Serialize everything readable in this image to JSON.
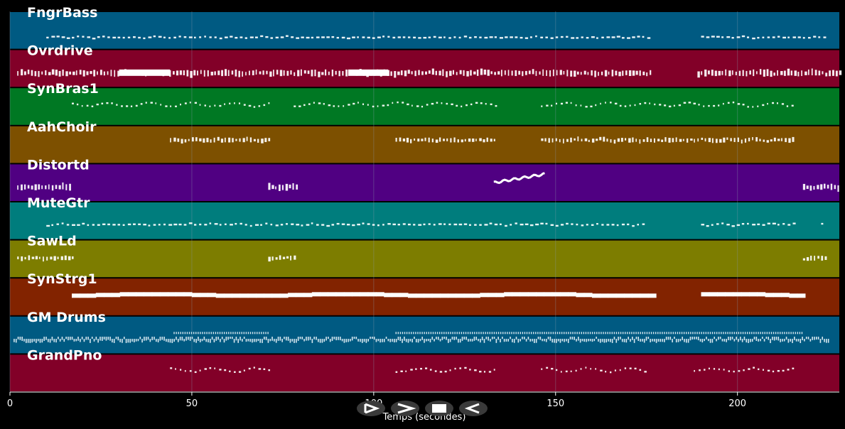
{
  "xaxis": {
    "label": "Temps (secondes)",
    "range": [
      0,
      228
    ],
    "ticks": [
      0,
      50,
      100,
      150,
      200
    ],
    "tick_labels": [
      "0",
      "50",
      "100",
      "150",
      "200"
    ]
  },
  "tracks": [
    {
      "name": "FngrBass",
      "color": "#005a82",
      "style": "dashes",
      "band": 0.68,
      "segments": [
        [
          10,
          176
        ],
        [
          190,
          224
        ]
      ]
    },
    {
      "name": "Ovrdrive",
      "color": "#820028",
      "style": "dense",
      "band": 0.62,
      "segments": [
        [
          2,
          176
        ],
        [
          189,
          228
        ]
      ],
      "blocks": [
        [
          30,
          44
        ],
        [
          93,
          104
        ]
      ]
    },
    {
      "name": "SynBras1",
      "color": "#007823",
      "style": "wave",
      "band": 0.45,
      "segments": [
        [
          17,
          72
        ],
        [
          78,
          134
        ],
        [
          146,
          216
        ]
      ]
    },
    {
      "name": "AahChoir",
      "color": "#7d5000",
      "style": "dense-low",
      "band": 0.38,
      "segments": [
        [
          44,
          72
        ],
        [
          106,
          134
        ],
        [
          146,
          216
        ]
      ]
    },
    {
      "name": "Distortd",
      "color": "#500082",
      "style": "dense",
      "band": 0.62,
      "segments": [
        [
          2,
          17
        ],
        [
          71,
          79
        ],
        [
          218,
          228
        ]
      ],
      "glide": [
        133,
        147
      ]
    },
    {
      "name": "MuteGtr",
      "color": "#007d7d",
      "style": "dashes",
      "band": 0.6,
      "segments": [
        [
          10,
          175
        ],
        [
          190,
          216
        ],
        [
          223,
          224
        ]
      ]
    },
    {
      "name": "SawLd",
      "color": "#7d7d00",
      "style": "dense-low",
      "band": 0.48,
      "segments": [
        [
          2,
          18
        ],
        [
          71,
          79
        ],
        [
          218,
          225
        ]
      ]
    },
    {
      "name": "SynStrg1",
      "color": "#822300",
      "style": "solid",
      "band": 0.45,
      "segments": [
        [
          17,
          176
        ],
        [
          190,
          217
        ]
      ]
    },
    {
      "name": "GM Drums",
      "color": "#005a82",
      "style": "drums",
      "band": 0.62,
      "segments": [
        [
          1,
          225
        ]
      ],
      "upper": [
        [
          45,
          71
        ],
        [
          106,
          218
        ]
      ]
    },
    {
      "name": "GrandPno",
      "color": "#820028",
      "style": "wave",
      "band": 0.42,
      "segments": [
        [
          44,
          72
        ],
        [
          106,
          134
        ],
        [
          146,
          175
        ],
        [
          188,
          216
        ]
      ]
    }
  ],
  "controls": [
    {
      "name": "play-button",
      "glyph": "play"
    },
    {
      "name": "forward-button",
      "glyph": "forward"
    },
    {
      "name": "stop-button",
      "glyph": "stop"
    },
    {
      "name": "rewind-button",
      "glyph": "rewind"
    }
  ],
  "colors": {
    "background": "#000000",
    "note": "#ffffff",
    "grid": "#8899aa"
  }
}
